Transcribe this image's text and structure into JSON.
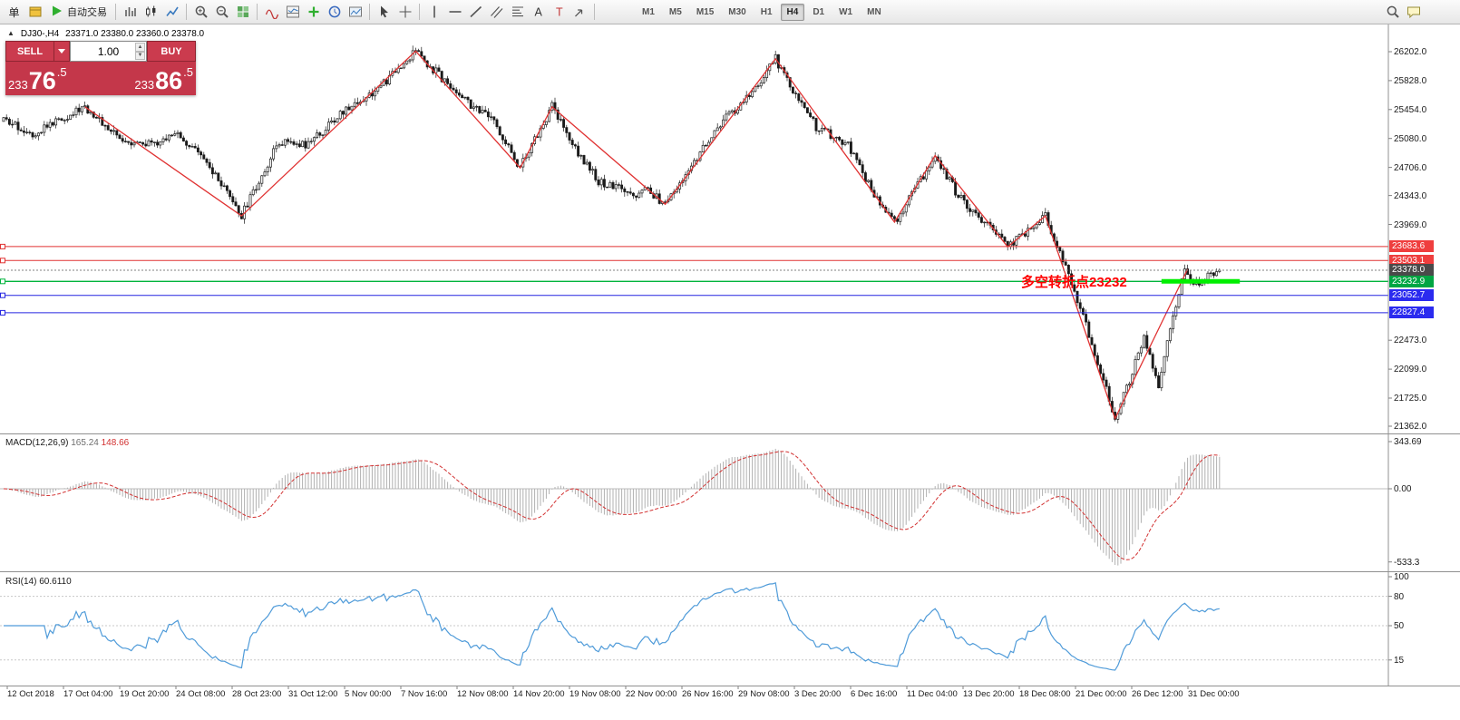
{
  "colors": {
    "level_red": "#e03232",
    "level_green": "#00b43c",
    "level_blue": "#2424e0",
    "current_price_line": "#808080",
    "annotation_green": "#00ef00",
    "zigzag_red": "#e03232",
    "macd_histogram": "#b0b0b0",
    "macd_signal": "#d23030",
    "rsi_line": "#4f9bd9",
    "panel_red": "#c4374a"
  },
  "toolbar": {
    "items": [
      {
        "kind": "text",
        "name": "new-order-button",
        "label": "单"
      },
      {
        "kind": "icon",
        "name": "history-icon",
        "icon": "history"
      },
      {
        "kind": "labeled",
        "name": "autotrading-button",
        "icon": "play",
        "label": "自动交易"
      },
      {
        "kind": "sep"
      },
      {
        "kind": "icon",
        "name": "bar-chart-button",
        "icon": "bars"
      },
      {
        "kind": "icon",
        "name": "candlestick-button",
        "icon": "candle"
      },
      {
        "kind": "icon",
        "name": "line-chart-button",
        "icon": "linechart"
      },
      {
        "kind": "sep"
      },
      {
        "kind": "icon",
        "name": "zoom-in-button",
        "icon": "zoomin"
      },
      {
        "kind": "icon",
        "name": "zoom-out-button",
        "icon": "zoomout"
      },
      {
        "kind": "icon",
        "name": "tile-windows-button",
        "icon": "tiles"
      },
      {
        "kind": "sep"
      },
      {
        "kind": "icon",
        "name": "indicators-button",
        "icon": "indicator"
      },
      {
        "kind": "icon",
        "name": "indicator-window-button",
        "icon": "indwin"
      },
      {
        "kind": "icon",
        "name": "add-indicator-button",
        "icon": "plus"
      },
      {
        "kind": "icon",
        "name": "periods-button",
        "icon": "clock"
      },
      {
        "kind": "icon",
        "name": "templates-button",
        "icon": "template"
      },
      {
        "kind": "sep"
      },
      {
        "kind": "icon",
        "name": "cursor-button",
        "icon": "cursor"
      },
      {
        "kind": "icon",
        "name": "crosshair-button",
        "icon": "crosshair"
      },
      {
        "kind": "sep"
      },
      {
        "kind": "icon",
        "name": "vertical-line-button",
        "icon": "vline"
      },
      {
        "kind": "icon",
        "name": "horizontal-line-button",
        "icon": "hline"
      },
      {
        "kind": "icon",
        "name": "trendline-button",
        "icon": "trend"
      },
      {
        "kind": "icon",
        "name": "channel-button",
        "icon": "channel"
      },
      {
        "kind": "icon",
        "name": "fibonacci-button",
        "icon": "fibo"
      },
      {
        "kind": "icon",
        "name": "text-button",
        "icon": "textA"
      },
      {
        "kind": "icon",
        "name": "label-button",
        "icon": "labelT"
      },
      {
        "kind": "icon",
        "name": "shapes-button",
        "icon": "shapes"
      },
      {
        "kind": "sep"
      }
    ],
    "timeframes": [
      {
        "label": "M1",
        "active": false
      },
      {
        "label": "M5",
        "active": false
      },
      {
        "label": "M15",
        "active": false
      },
      {
        "label": "M30",
        "active": false
      },
      {
        "label": "H1",
        "active": false
      },
      {
        "label": "H4",
        "active": true
      },
      {
        "label": "D1",
        "active": false
      },
      {
        "label": "W1",
        "active": false
      },
      {
        "label": "MN",
        "active": false
      }
    ],
    "right_items": [
      {
        "kind": "icon",
        "name": "search-button",
        "icon": "search"
      },
      {
        "kind": "icon",
        "name": "chat-button",
        "icon": "chat"
      }
    ]
  },
  "chart": {
    "header": {
      "collapse_icon": "▲",
      "symbol": "DJ30-,H4",
      "ohlc": "23371.0 23380.0 23360.0 23378.0"
    },
    "trade_panel": {
      "sell_label": "SELL",
      "buy_label": "BUY",
      "volume": "1.00",
      "sell_price": {
        "pre": "233",
        "big": "76",
        "frac": ".5"
      },
      "buy_price": {
        "pre": "233",
        "big": "86",
        "frac": ".5"
      }
    },
    "annotation": {
      "text": "多空转折点23232"
    },
    "levels": [
      {
        "price": 23683.6,
        "label": "23683.6",
        "type": "red"
      },
      {
        "price": 23503.1,
        "label": "23503.1",
        "type": "red"
      },
      {
        "price": 23378.0,
        "label": "23378.0",
        "type": "current"
      },
      {
        "price": 23232.9,
        "label": "23232.9",
        "type": "green"
      },
      {
        "price": 23052.7,
        "label": "23052.7",
        "type": "blue"
      },
      {
        "price": 22827.4,
        "label": "22827.4",
        "type": "blue"
      }
    ],
    "price_ticks": [
      "26202.0",
      "25828.0",
      "25454.0",
      "25080.0",
      "24706.0",
      "24343.0",
      "23969.0",
      "22473.0",
      "22099.0",
      "21725.0",
      "21362.0"
    ],
    "time_axis": [
      "12 Oct 2018",
      "17 Oct 04:00",
      "19 Oct 20:00",
      "24 Oct 08:00",
      "28 Oct 23:00",
      "31 Oct 12:00",
      "5 Nov 00:00",
      "7 Nov 16:00",
      "12 Nov 08:00",
      "14 Nov 20:00",
      "19 Nov 08:00",
      "22 Nov 00:00",
      "26 Nov 16:00",
      "29 Nov 08:00",
      "3 Dec 20:00",
      "6 Dec 16:00",
      "11 Dec 04:00",
      "13 Dec 20:00",
      "18 Dec 08:00",
      "21 Dec 00:00",
      "26 Dec 12:00",
      "31 Dec 00:00"
    ]
  },
  "macd_panel": {
    "name": "MACD(12,26,9)",
    "main_value": "165.24",
    "signal_value": "148.66",
    "axis": [
      "343.69",
      "0.00",
      "-533.3"
    ]
  },
  "rsi_panel": {
    "name": "RSI(14)",
    "value": "60.6110",
    "axis": [
      "100",
      "80",
      "50",
      "15"
    ]
  },
  "chart_data": [
    {
      "type": "candlestick",
      "symbol": "DJ30-",
      "timeframe": "H4",
      "num_candles": 420,
      "ylim": [
        21290,
        26520
      ],
      "last_ohlc": {
        "open": 23371.0,
        "high": 23380.0,
        "low": 23360.0,
        "close": 23378.0
      },
      "price_path": [
        [
          0,
          25300
        ],
        [
          10,
          25150
        ],
        [
          28,
          25490
        ],
        [
          40,
          25080
        ],
        [
          52,
          24990
        ],
        [
          60,
          25160
        ],
        [
          70,
          24750
        ],
        [
          82,
          24080
        ],
        [
          95,
          25050
        ],
        [
          105,
          25000
        ],
        [
          118,
          25460
        ],
        [
          130,
          25750
        ],
        [
          142,
          26210
        ],
        [
          150,
          25900
        ],
        [
          161,
          25520
        ],
        [
          169,
          25290
        ],
        [
          178,
          24700
        ],
        [
          189,
          25490
        ],
        [
          198,
          24900
        ],
        [
          205,
          24530
        ],
        [
          211,
          24450
        ],
        [
          217,
          24320
        ],
        [
          222,
          24420
        ],
        [
          228,
          24230
        ],
        [
          238,
          24800
        ],
        [
          249,
          25350
        ],
        [
          258,
          25650
        ],
        [
          266,
          26110
        ],
        [
          272,
          25700
        ],
        [
          280,
          25230
        ],
        [
          291,
          25000
        ],
        [
          299,
          24420
        ],
        [
          307,
          24000
        ],
        [
          314,
          24420
        ],
        [
          321,
          24860
        ],
        [
          328,
          24400
        ],
        [
          336,
          24060
        ],
        [
          346,
          23680
        ],
        [
          352,
          23850
        ],
        [
          359,
          24080
        ],
        [
          365,
          23500
        ],
        [
          371,
          22900
        ],
        [
          377,
          22200
        ],
        [
          383,
          21460
        ],
        [
          388,
          21950
        ],
        [
          393,
          22530
        ],
        [
          398,
          21830
        ],
        [
          403,
          22800
        ],
        [
          407,
          23380
        ],
        [
          411,
          23180
        ],
        [
          415,
          23300
        ],
        [
          419,
          23378
        ]
      ],
      "zigzag": [
        [
          28,
          25490
        ],
        [
          82,
          24080
        ],
        [
          142,
          26210
        ],
        [
          178,
          24700
        ],
        [
          189,
          25490
        ],
        [
          228,
          24230
        ],
        [
          266,
          26110
        ],
        [
          307,
          24000
        ],
        [
          321,
          24860
        ],
        [
          346,
          23680
        ],
        [
          359,
          24080
        ],
        [
          383,
          21460
        ],
        [
          408,
          23390
        ]
      ],
      "levels": [
        23683.6,
        23503.1,
        23378.0,
        23232.9,
        23052.7,
        22827.4
      ],
      "annotation_line": {
        "price": 23232.9,
        "start_index": 399,
        "end_index": 426
      }
    },
    {
      "type": "macd",
      "params": [
        12,
        26,
        9
      ],
      "main": 165.24,
      "signal": 148.66,
      "ylim": [
        -533.3,
        343.69
      ]
    },
    {
      "type": "rsi",
      "period": 14,
      "value": 60.611,
      "ylim": [
        0,
        100
      ],
      "levels": [
        80,
        50,
        15
      ]
    }
  ]
}
